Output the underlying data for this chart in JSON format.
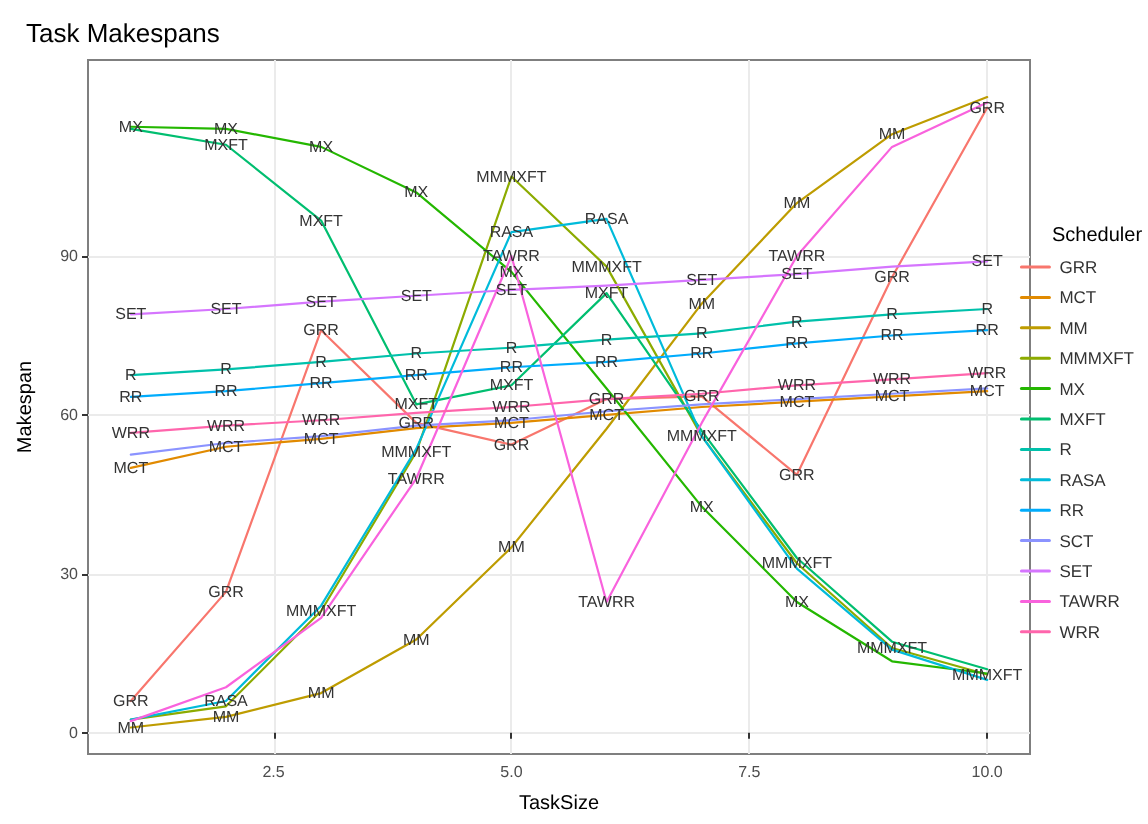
{
  "chart_data": {
    "type": "line",
    "title": "Task Makespans",
    "xlabel": "TaskSize",
    "ylabel": "Makespan",
    "legend_title": "Scheduler",
    "x": [
      1,
      2,
      3,
      4,
      5,
      6,
      7,
      8,
      9,
      10
    ],
    "xlim": [
      0.55,
      10.45
    ],
    "xticks": [
      {
        "value": 2.5,
        "label": "2.5"
      },
      {
        "value": 5,
        "label": "5.0"
      },
      {
        "value": 7.5,
        "label": "7.5"
      },
      {
        "value": 10,
        "label": "10.0"
      }
    ],
    "ylim": [
      -4,
      127
    ],
    "yticks": [
      0,
      30,
      60,
      90
    ],
    "grid": true,
    "legend": "right",
    "marker": "none",
    "line_style": "solid",
    "series": [
      {
        "name": "GRR",
        "color": "#f8766d",
        "values": [
          6,
          26.6,
          76,
          58.5,
          54.4,
          63,
          63.5,
          48.7,
          86,
          118
        ]
      },
      {
        "name": "MCT",
        "color": "#e18a00",
        "values": [
          50,
          54,
          55.5,
          57.5,
          58.5,
          60,
          61.5,
          62.5,
          63.5,
          64.5
        ]
      },
      {
        "name": "MM",
        "color": "#be9c00",
        "values": [
          1,
          3,
          7.5,
          17.6,
          35,
          57.4,
          81,
          100,
          113,
          120
        ]
      },
      {
        "name": "MMMXFT",
        "color": "#8cab00",
        "values": [
          2.5,
          5,
          23,
          53,
          105,
          88,
          56,
          32,
          16,
          11
        ]
      },
      {
        "name": "MX",
        "color": "#24b700",
        "values": [
          114.4,
          114,
          110.6,
          102,
          87,
          65,
          42.7,
          24.7,
          13.5,
          11.2
        ]
      },
      {
        "name": "MXFT",
        "color": "#00be70",
        "values": [
          114,
          111,
          96.7,
          62,
          65.6,
          83,
          57,
          33,
          17.2,
          12
        ]
      },
      {
        "name": "R",
        "color": "#00c1ab",
        "values": [
          67.5,
          68.6,
          70,
          71.6,
          72.7,
          74.2,
          75.4,
          77.6,
          79,
          80
        ]
      },
      {
        "name": "RASA",
        "color": "#00bbda",
        "values": [
          2.5,
          6,
          24,
          53.6,
          94.5,
          97,
          56,
          31,
          15.7,
          10
        ]
      },
      {
        "name": "RR",
        "color": "#00acfc",
        "values": [
          63.4,
          64.5,
          66,
          67.5,
          69,
          70,
          71.6,
          73.5,
          75,
          76
        ]
      },
      {
        "name": "SCT",
        "color": "#8b93ff",
        "values": [
          52.5,
          54.7,
          56,
          58,
          59,
          60.7,
          62,
          63,
          64,
          65
        ]
      },
      {
        "name": "SET",
        "color": "#d575fe",
        "values": [
          79,
          80,
          81.4,
          82.5,
          83.6,
          84.4,
          85.5,
          86.6,
          88,
          89
        ]
      },
      {
        "name": "TAWRR",
        "color": "#f962dd",
        "values": [
          2.2,
          8.6,
          21.7,
          48,
          90,
          24.7,
          58.5,
          90,
          110.6,
          119
        ]
      },
      {
        "name": "WRR",
        "color": "#ff65ac",
        "values": [
          56.6,
          58,
          59,
          60.4,
          61.5,
          63,
          64,
          65.6,
          66.7,
          67.9
        ]
      }
    ]
  }
}
